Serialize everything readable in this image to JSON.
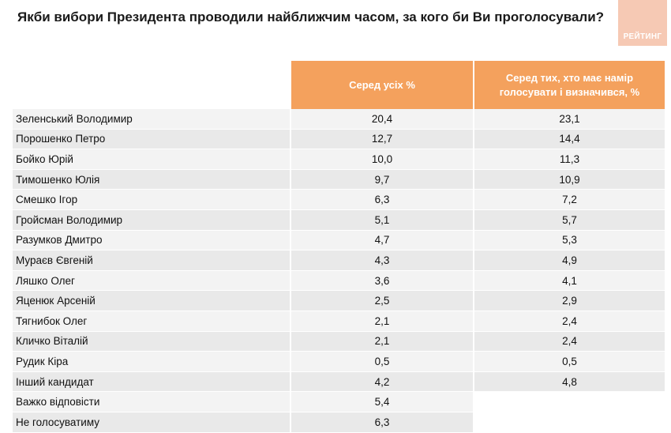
{
  "title": "Якби вибори Президента проводили найближчим часом, за кого би Ви проголосували?",
  "logo": {
    "text": "РЕЙТИНГ"
  },
  "chart_data": {
    "type": "table",
    "columns": [
      "",
      "Серед усіх %",
      "Серед тих, хто має намір голосувати і визначився, %"
    ],
    "rows": [
      {
        "name": "Зеленський Володимир",
        "all": "20,4",
        "decided": "23,1"
      },
      {
        "name": "Порошенко Петро",
        "all": "12,7",
        "decided": "14,4"
      },
      {
        "name": "Бойко Юрій",
        "all": "10,0",
        "decided": "11,3"
      },
      {
        "name": "Тимошенко Юлія",
        "all": "9,7",
        "decided": "10,9"
      },
      {
        "name": "Смешко Ігор",
        "all": "6,3",
        "decided": "7,2"
      },
      {
        "name": "Гройсман Володимир",
        "all": "5,1",
        "decided": "5,7"
      },
      {
        "name": "Разумков Дмитро",
        "all": "4,7",
        "decided": "5,3"
      },
      {
        "name": "Мураєв Євгеній",
        "all": "4,3",
        "decided": "4,9"
      },
      {
        "name": "Ляшко Олег",
        "all": "3,6",
        "decided": "4,1"
      },
      {
        "name": "Яценюк Арсеній",
        "all": "2,5",
        "decided": "2,9"
      },
      {
        "name": "Тягнибок Олег",
        "all": "2,1",
        "decided": "2,4"
      },
      {
        "name": "Кличко Віталій",
        "all": "2,1",
        "decided": "2,4"
      },
      {
        "name": "Рудик Кіра",
        "all": "0,5",
        "decided": "0,5"
      },
      {
        "name": "Інший кандидат",
        "all": "4,2",
        "decided": "4,8"
      },
      {
        "name": "Важко відповісти",
        "all": "5,4",
        "decided": null
      },
      {
        "name": "Не голосуватиму",
        "all": "6,3",
        "decided": null
      }
    ]
  },
  "colors": {
    "header": "#f4a15d",
    "row_light": "#f3f3f3",
    "row_dark": "#e9e9e9",
    "logo": "#f6c9b4"
  }
}
